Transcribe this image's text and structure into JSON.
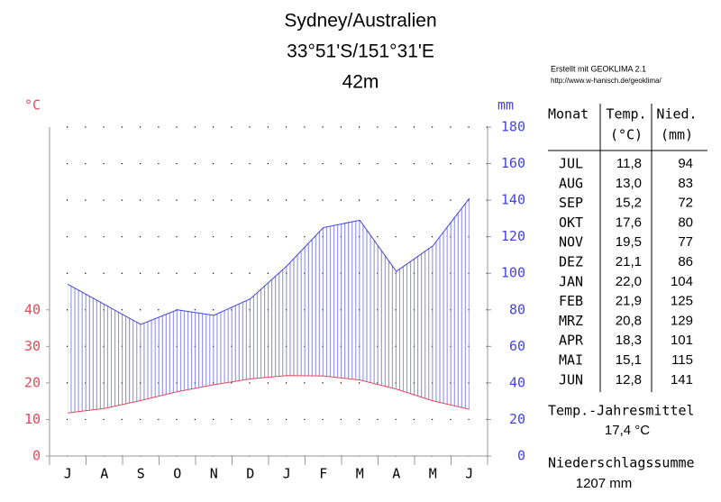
{
  "chart_data": {
    "type": "climate",
    "title": "Sydney/Australien",
    "coordinates": "33°51'S/151°31'E",
    "elevation": "42m",
    "ylabel": "°C",
    "y2label": "mm",
    "categories": [
      "J",
      "A",
      "S",
      "O",
      "N",
      "D",
      "J",
      "F",
      "M",
      "A",
      "M",
      "J"
    ],
    "series": [
      {
        "color": "#e04a5a",
        "values": [
          11.8,
          13.0,
          15.2,
          17.6,
          19.5,
          21.1,
          22.0,
          21.9,
          20.8,
          18.3,
          15.1,
          12.8
        ]
      },
      {
        "color": "#4444dd",
        "axis": "y2",
        "values": [
          94,
          83,
          72,
          80,
          77,
          86,
          104,
          125,
          129,
          101,
          115,
          141
        ]
      }
    ],
    "ylim": [
      0,
      90
    ],
    "yticks": [
      0,
      10,
      20,
      30,
      40
    ],
    "y2lim": [
      0,
      180
    ],
    "y2ticks": [
      0,
      20,
      40,
      60,
      80,
      100,
      120,
      140,
      160,
      180
    ],
    "grid": true
  },
  "credit": [
    "Erstellt mit GEOKLIMA 2.1",
    "http://www.w-hanisch.de/geoklima/"
  ],
  "table": {
    "header": [
      "Monat",
      "Temp.",
      "Nied."
    ],
    "units": [
      "(°C)",
      "(mm)"
    ],
    "rows": [
      [
        "JUL",
        "11,8",
        "94"
      ],
      [
        "AUG",
        "13,0",
        "83"
      ],
      [
        "SEP",
        "15,2",
        "72"
      ],
      [
        "OKT",
        "17,6",
        "80"
      ],
      [
        "NOV",
        "19,5",
        "77"
      ],
      [
        "DEZ",
        "21,1",
        "86"
      ],
      [
        "JAN",
        "22,0",
        "104"
      ],
      [
        "FEB",
        "21,9",
        "125"
      ],
      [
        "MRZ",
        "20,8",
        "129"
      ],
      [
        "APR",
        "18,3",
        "101"
      ],
      [
        "MAI",
        "15,1",
        "115"
      ],
      [
        "JUN",
        "12,8",
        "141"
      ]
    ]
  },
  "summary": {
    "temp_label": "Temp.-Jahresmittel",
    "temp_value": "17,4 °C",
    "precip_label": "Niederschlagssumme",
    "precip_value": "1207 mm"
  }
}
